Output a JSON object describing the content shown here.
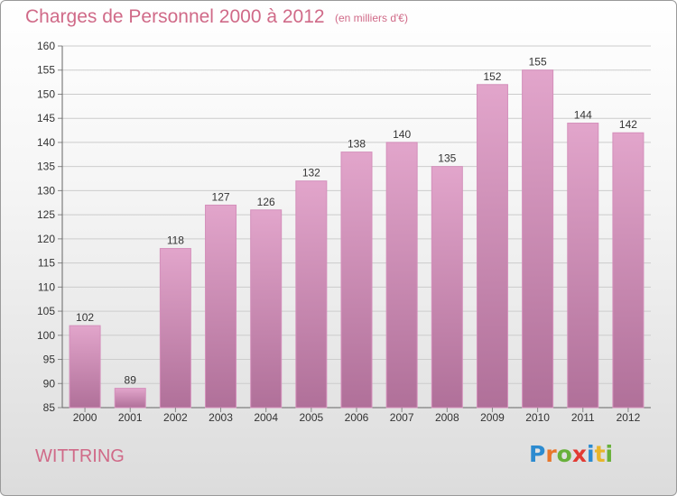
{
  "header": {
    "title": "Charges de Personnel 2000 à 2012",
    "subtitle": "(en milliers d'€)"
  },
  "footer": {
    "commune": "WITTRING",
    "logo_text": "Proxiti",
    "logo_letters": [
      {
        "char": "P",
        "color": "#2c8bd0"
      },
      {
        "char": "r",
        "color": "#e8762b"
      },
      {
        "char": "o",
        "color": "#68b03a"
      },
      {
        "char": "x",
        "color": "#e23a33"
      },
      {
        "char": "i",
        "color": "#2c8bd0"
      },
      {
        "char": "t",
        "color": "#e8b52a"
      },
      {
        "char": "i",
        "color": "#68b03a"
      }
    ]
  },
  "colors": {
    "bar_top": "#e2a5cb",
    "bar_bottom": "#b07099",
    "bar_edge": "#d48fbb",
    "text": "#d06a88",
    "grid": "#cccccc"
  },
  "chart_data": {
    "type": "bar",
    "categories": [
      "2000",
      "2001",
      "2002",
      "2003",
      "2004",
      "2005",
      "2006",
      "2007",
      "2008",
      "2009",
      "2010",
      "2011",
      "2012"
    ],
    "values": [
      102,
      89,
      118,
      127,
      126,
      132,
      138,
      140,
      135,
      152,
      155,
      144,
      142
    ],
    "ylim": [
      85,
      160
    ],
    "yticks": [
      85,
      90,
      95,
      100,
      105,
      110,
      115,
      120,
      125,
      130,
      135,
      140,
      145,
      150,
      155,
      160
    ],
    "grid": true,
    "data_labels": true
  }
}
